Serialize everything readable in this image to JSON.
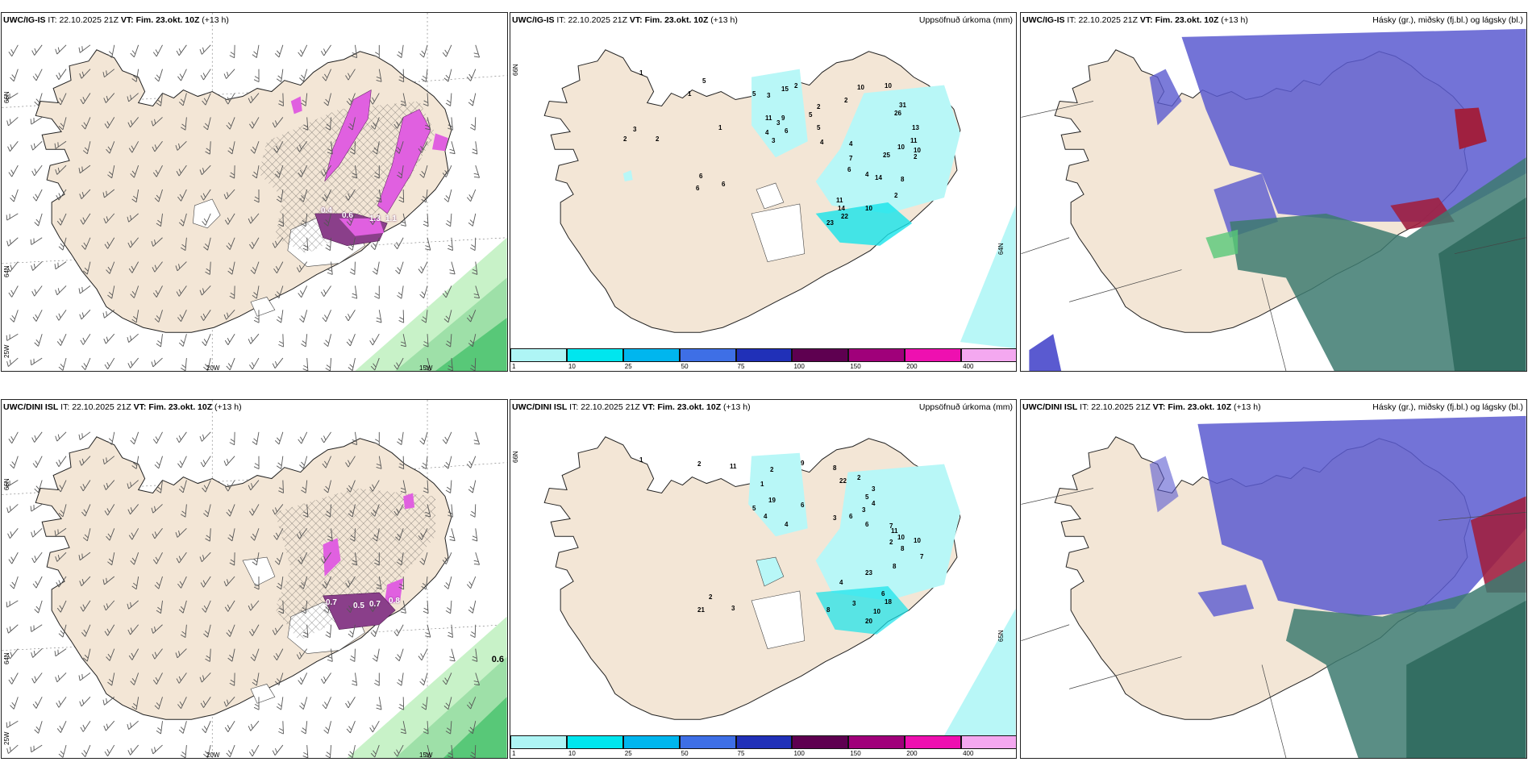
{
  "rows": [
    {
      "model": "UWC/IG-IS",
      "it_label": "IT:",
      "it_value": "22.10.2025 21Z",
      "vt_label": "VT:",
      "vt_value": "Fim. 23.okt. 10Z",
      "lead": "(+13 h)",
      "wind_values": [
        "0.4",
        "0.6",
        "1.3",
        "1.1"
      ],
      "precip_values": [
        "1",
        "1",
        "1",
        "2",
        "3",
        "2",
        "5",
        "3",
        "15",
        "5",
        "2",
        "11",
        "9",
        "3",
        "4",
        "3",
        "6",
        "5",
        "2",
        "5",
        "4",
        "10",
        "10",
        "2",
        "31",
        "26",
        "4",
        "13",
        "11",
        "10",
        "10",
        "2",
        "7",
        "6",
        "4",
        "25",
        "8",
        "14",
        "2",
        "10",
        "14",
        "23",
        "22",
        "11",
        "6",
        "6",
        "6"
      ]
    },
    {
      "model": "UWC/DINI ISL",
      "it_label": "IT:",
      "it_value": "22.10.2025 21Z",
      "vt_label": "VT:",
      "vt_value": "Fim. 23.okt. 10Z",
      "lead": "(+13 h)",
      "wind_values": [
        "0.7",
        "0.5",
        "0.7",
        "0.8"
      ],
      "side_value": "0.6",
      "precip_values": [
        "1",
        "2",
        "11",
        "2",
        "1",
        "9",
        "8",
        "22",
        "2",
        "3",
        "5",
        "3",
        "4",
        "6",
        "6",
        "19",
        "5",
        "4",
        "4",
        "6",
        "3",
        "7",
        "11",
        "10",
        "10",
        "2",
        "8",
        "7",
        "8",
        "23",
        "6",
        "4",
        "8",
        "3",
        "10",
        "20",
        "18",
        "21",
        "2",
        "3"
      ]
    }
  ],
  "center_title": "Uppsöfnuð úrkoma (mm)",
  "right_title": "Hásky (gr.), miðsky (fj.bl.) og lágsky (bl.)",
  "lat_labels": [
    "66N",
    "64N",
    "65N"
  ],
  "lon_labels": [
    "20W",
    "15W",
    "25W"
  ],
  "colorbar": {
    "labels": [
      "1",
      "10",
      "25",
      "50",
      "75",
      "100",
      "150",
      "200",
      "400"
    ],
    "colors": [
      "#aef5f5",
      "#00e6ee",
      "#00b6ee",
      "#3e6fe6",
      "#2030b8",
      "#5e0050",
      "#a0007a",
      "#ee10b0",
      "#f4a8f0"
    ]
  },
  "colors": {
    "land": "#f3e6d6",
    "coast": "#222222",
    "light_cyan": "#b8f7f7",
    "cyan": "#16e3ea",
    "magenta": "#e060e0",
    "purple": "#8a3f8a",
    "green_light": "#c8f2c8",
    "green": "#58c878",
    "cloud_blue": "#5a5ad0",
    "cloud_dark": "#3d7a70",
    "cloud_red": "#a02040"
  }
}
